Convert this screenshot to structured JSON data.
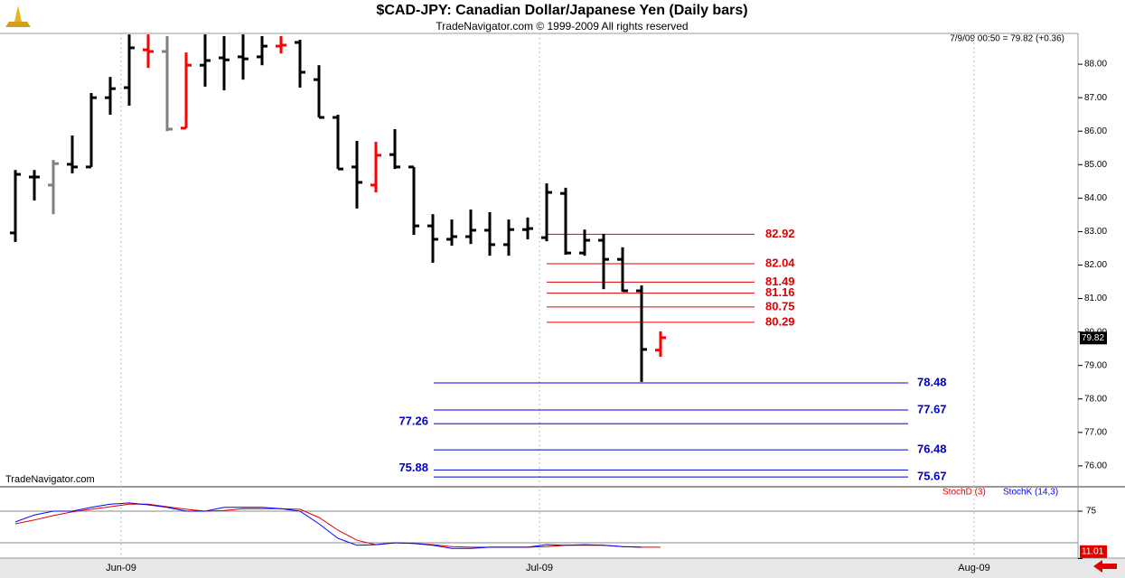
{
  "chart_data": [
    {
      "type": "ohlc",
      "title": "$CAD-JPY:  Canadian Dollar/Japanese Yen  (Daily bars)",
      "subtitle": "TradeNavigator.com © 1999-2009 All rights reserved",
      "info": "7/9/09 00:50 = 79.82 (+0.36)",
      "watermark": "TradeNavigator.com",
      "last_price": 79.82,
      "categories": [
        "Jun-09",
        "Jul-09",
        "Aug-09"
      ],
      "open": [
        82.96,
        84.63,
        84.39,
        85.01,
        84.93,
        87.0,
        87.3,
        88.43,
        88.38,
        86.09,
        87.97,
        88.19,
        88.22,
        88.22,
        88.54,
        88.65,
        87.54,
        86.41,
        84.93,
        84.39,
        85.3,
        84.93,
        83.17,
        82.77,
        82.85,
        83.04,
        82.61,
        83.06,
        82.82,
        84.14,
        82.36,
        82.74,
        82.17,
        81.23,
        79.46
      ],
      "high": [
        84.84,
        84.84,
        85.14,
        85.87,
        87.14,
        87.62,
        88.89,
        88.89,
        88.84,
        88.35,
        88.89,
        88.84,
        88.89,
        88.84,
        88.84,
        88.73,
        87.97,
        86.49,
        85.71,
        85.68,
        86.06,
        84.93,
        83.52,
        83.36,
        83.66,
        83.58,
        83.36,
        83.42,
        84.44,
        84.31,
        83.06,
        82.93,
        82.53,
        81.39,
        80.02
      ],
      "low": [
        82.69,
        83.93,
        83.52,
        84.74,
        84.93,
        86.49,
        86.76,
        87.89,
        86.0,
        86.09,
        87.33,
        87.22,
        87.54,
        87.97,
        88.32,
        87.3,
        86.41,
        84.87,
        83.69,
        84.17,
        84.87,
        82.9,
        82.07,
        82.58,
        82.63,
        82.28,
        82.28,
        82.77,
        82.71,
        82.31,
        82.28,
        81.28,
        81.2,
        78.51,
        79.26
      ],
      "close": [
        84.71,
        84.63,
        85.03,
        84.93,
        87.0,
        87.27,
        88.49,
        88.38,
        86.06,
        87.97,
        88.11,
        88.13,
        88.16,
        88.54,
        88.57,
        87.76,
        86.41,
        84.87,
        84.47,
        85.28,
        84.93,
        83.17,
        82.77,
        82.85,
        83.04,
        82.61,
        83.06,
        83.09,
        84.17,
        82.36,
        82.74,
        82.17,
        81.23,
        79.48,
        79.83
      ],
      "bar_colors": [
        "#000000",
        "#000000",
        "#808080",
        "#000000",
        "#000000",
        "#000000",
        "#000000",
        "#ff0000",
        "#808080",
        "#ff0000",
        "#000000",
        "#000000",
        "#000000",
        "#000000",
        "#ff0000",
        "#000000",
        "#000000",
        "#000000",
        "#000000",
        "#ff0000",
        "#000000",
        "#000000",
        "#000000",
        "#000000",
        "#000000",
        "#000000",
        "#000000",
        "#000000",
        "#000000",
        "#000000",
        "#000000",
        "#000000",
        "#000000",
        "#000000",
        "#ff0000"
      ],
      "red_levels": [
        82.92,
        82.04,
        81.49,
        81.16,
        80.75,
        80.29
      ],
      "red_color": "#e00000",
      "blue_levels": [
        78.48,
        77.67,
        77.26,
        76.48,
        75.88,
        75.67
      ],
      "blue_color": "#0000cc",
      "ylim": [
        75.43,
        88.92
      ],
      "yticks": [
        {
          "value": 76,
          "label": "76.00"
        },
        {
          "value": 77,
          "label": "77.00"
        },
        {
          "value": 78,
          "label": "78.00"
        },
        {
          "value": 79,
          "label": "79.00"
        },
        {
          "value": 80,
          "label": "80.00"
        },
        {
          "value": 81,
          "label": "81.00"
        },
        {
          "value": 82,
          "label": "82.00"
        },
        {
          "value": 83,
          "label": "83.00"
        },
        {
          "value": 84,
          "label": "84.00"
        },
        {
          "value": 85,
          "label": "85.00"
        },
        {
          "value": 86,
          "label": "86.00"
        },
        {
          "value": 87,
          "label": "87.00"
        },
        {
          "value": 88,
          "label": "88.00"
        }
      ]
    },
    {
      "type": "line",
      "ylim": [
        0,
        100
      ],
      "yticks": [
        0,
        75
      ],
      "levels": [
        25,
        75
      ],
      "last_value": 11.01,
      "series": [
        {
          "name": "StochD (3)",
          "color": "#e00000",
          "values": [
            55,
            61,
            68,
            74,
            78,
            82,
            86,
            86,
            82,
            78,
            75,
            76,
            79,
            79,
            79,
            78,
            65,
            45,
            29,
            22,
            25,
            24,
            22,
            19,
            18,
            18,
            18,
            18,
            19,
            21,
            21,
            21,
            19,
            18,
            18
          ]
        },
        {
          "name": "StochK (14,3)",
          "color": "#0000ff",
          "values": [
            58,
            69,
            75,
            75,
            81,
            86,
            88,
            85,
            81,
            75,
            75,
            81,
            81,
            81,
            79,
            75,
            55,
            32,
            21,
            22,
            25,
            24,
            21,
            16,
            16,
            18,
            18,
            18,
            22,
            21,
            22,
            21,
            19,
            18,
            null
          ]
        }
      ]
    }
  ]
}
